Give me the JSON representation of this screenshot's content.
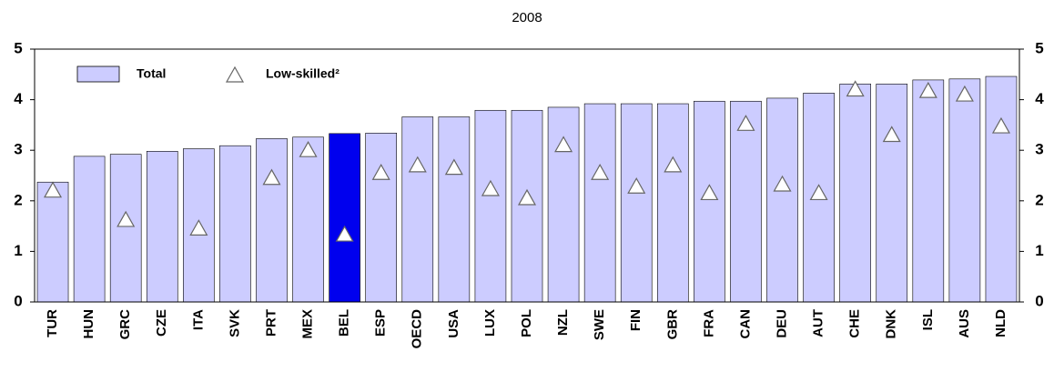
{
  "chart_data": {
    "type": "bar",
    "title": "2008",
    "categories": [
      "TUR",
      "HUN",
      "GRC",
      "CZE",
      "ITA",
      "SVK",
      "PRT",
      "MEX",
      "BEL",
      "ESP",
      "OECD",
      "USA",
      "LUX",
      "POL",
      "NZL",
      "SWE",
      "FIN",
      "GBR",
      "FRA",
      "CAN",
      "DEU",
      "AUT",
      "CHE",
      "DNK",
      "ISL",
      "AUS",
      "NLD"
    ],
    "series": [
      {
        "name": "Total",
        "color": "#ccccff",
        "colors": [
          "#ccccff",
          "#ccccff",
          "#ccccff",
          "#ccccff",
          "#ccccff",
          "#ccccff",
          "#ccccff",
          "#ccccff",
          "#0000ee",
          "#ccccff",
          "#ccccff",
          "#ccccff",
          "#ccccff",
          "#ccccff",
          "#ccccff",
          "#ccccff",
          "#ccccff",
          "#ccccff",
          "#ccccff",
          "#ccccff",
          "#ccccff",
          "#ccccff",
          "#ccccff",
          "#ccccff",
          "#ccccff",
          "#ccccff",
          "#ccccff"
        ],
        "values": [
          2.37,
          2.88,
          2.92,
          2.98,
          3.03,
          3.09,
          3.23,
          3.26,
          3.33,
          3.34,
          3.66,
          3.66,
          3.79,
          3.79,
          3.85,
          3.92,
          3.92,
          3.92,
          3.97,
          3.97,
          4.03,
          4.13,
          4.31,
          4.31,
          4.39,
          4.41,
          4.46
        ]
      },
      {
        "name": "Low-skilled²",
        "color": "#ffffff",
        "marker": "triangle",
        "values": [
          2.2,
          null,
          1.62,
          null,
          1.45,
          null,
          2.45,
          3.0,
          1.33,
          2.55,
          2.7,
          2.65,
          2.23,
          2.05,
          3.1,
          2.55,
          2.28,
          2.7,
          2.15,
          3.52,
          2.32,
          2.15,
          4.2,
          3.3,
          4.17,
          4.1,
          3.47
        ]
      }
    ],
    "ylim": [
      0,
      5
    ],
    "yticks": [
      0,
      1,
      2,
      3,
      4,
      5
    ],
    "y2lim": [
      0,
      5
    ],
    "y2ticks": [
      0,
      1,
      2,
      3,
      4,
      5
    ],
    "grid": false
  }
}
